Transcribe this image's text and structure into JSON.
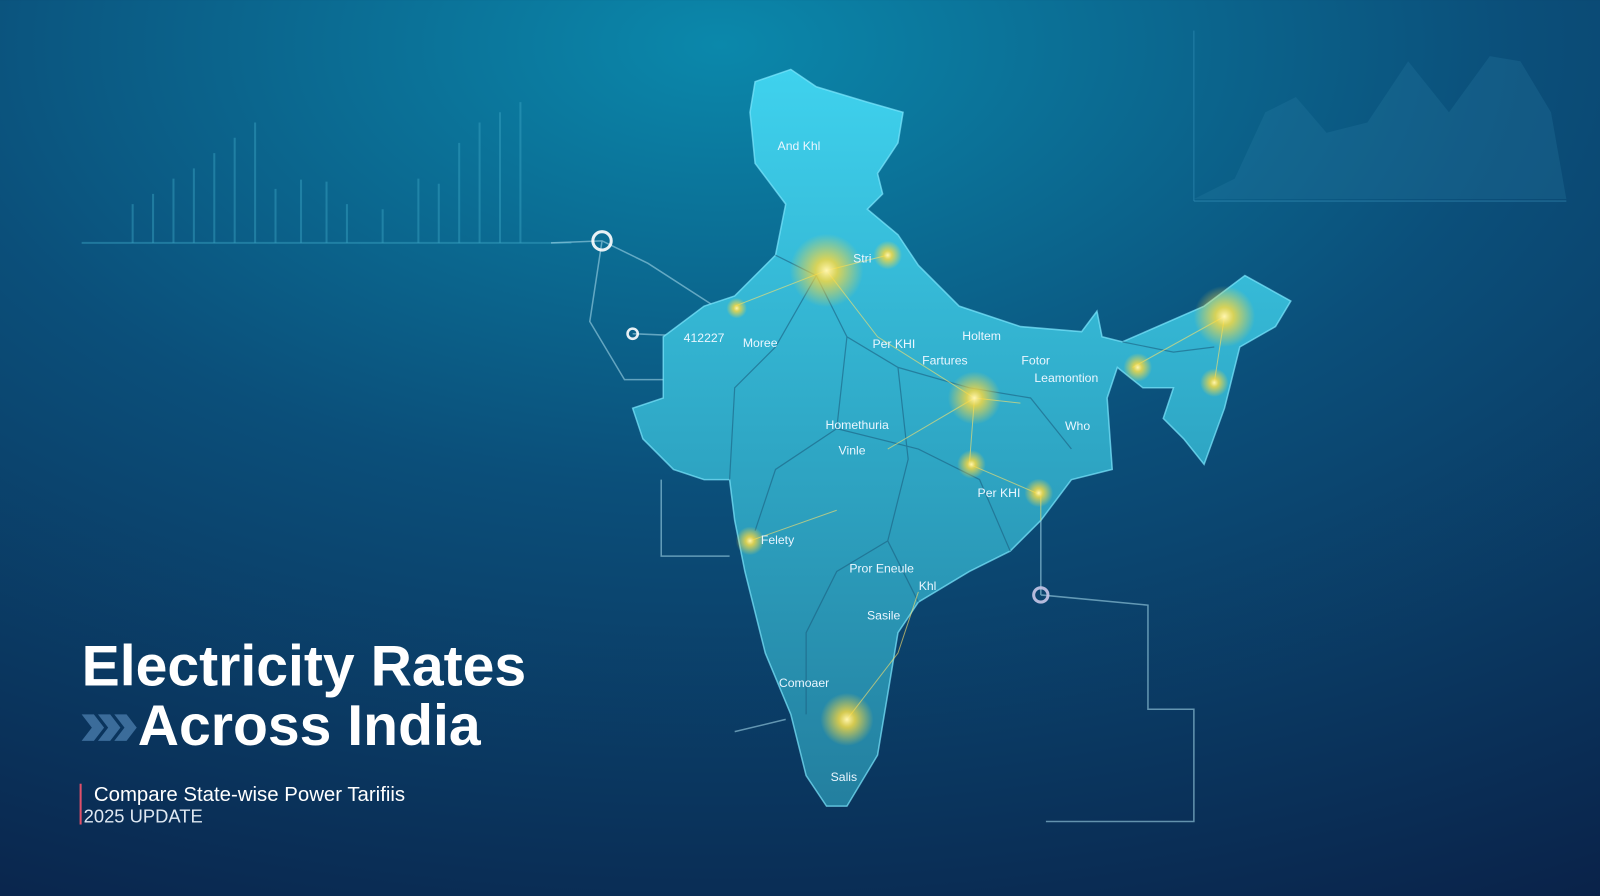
{
  "header": {
    "title_lines": [
      "Electricity Rates",
      "Across India"
    ],
    "subtitle": "Compare State-wise Power Tarifiis",
    "badge": "2025 UPDATE"
  },
  "map": {
    "labels": [
      "And Khl",
      "Stri",
      "412227",
      "Moree",
      "Per KHI",
      "Fartures",
      "Holtem",
      "Fotor",
      "Leamontion",
      "Homethuria",
      "Vinle",
      "Who",
      "Per KHI",
      "Felety",
      "Pror Eneule",
      "Khl",
      "Sasile",
      "Comoaer",
      "Salis"
    ]
  }
}
